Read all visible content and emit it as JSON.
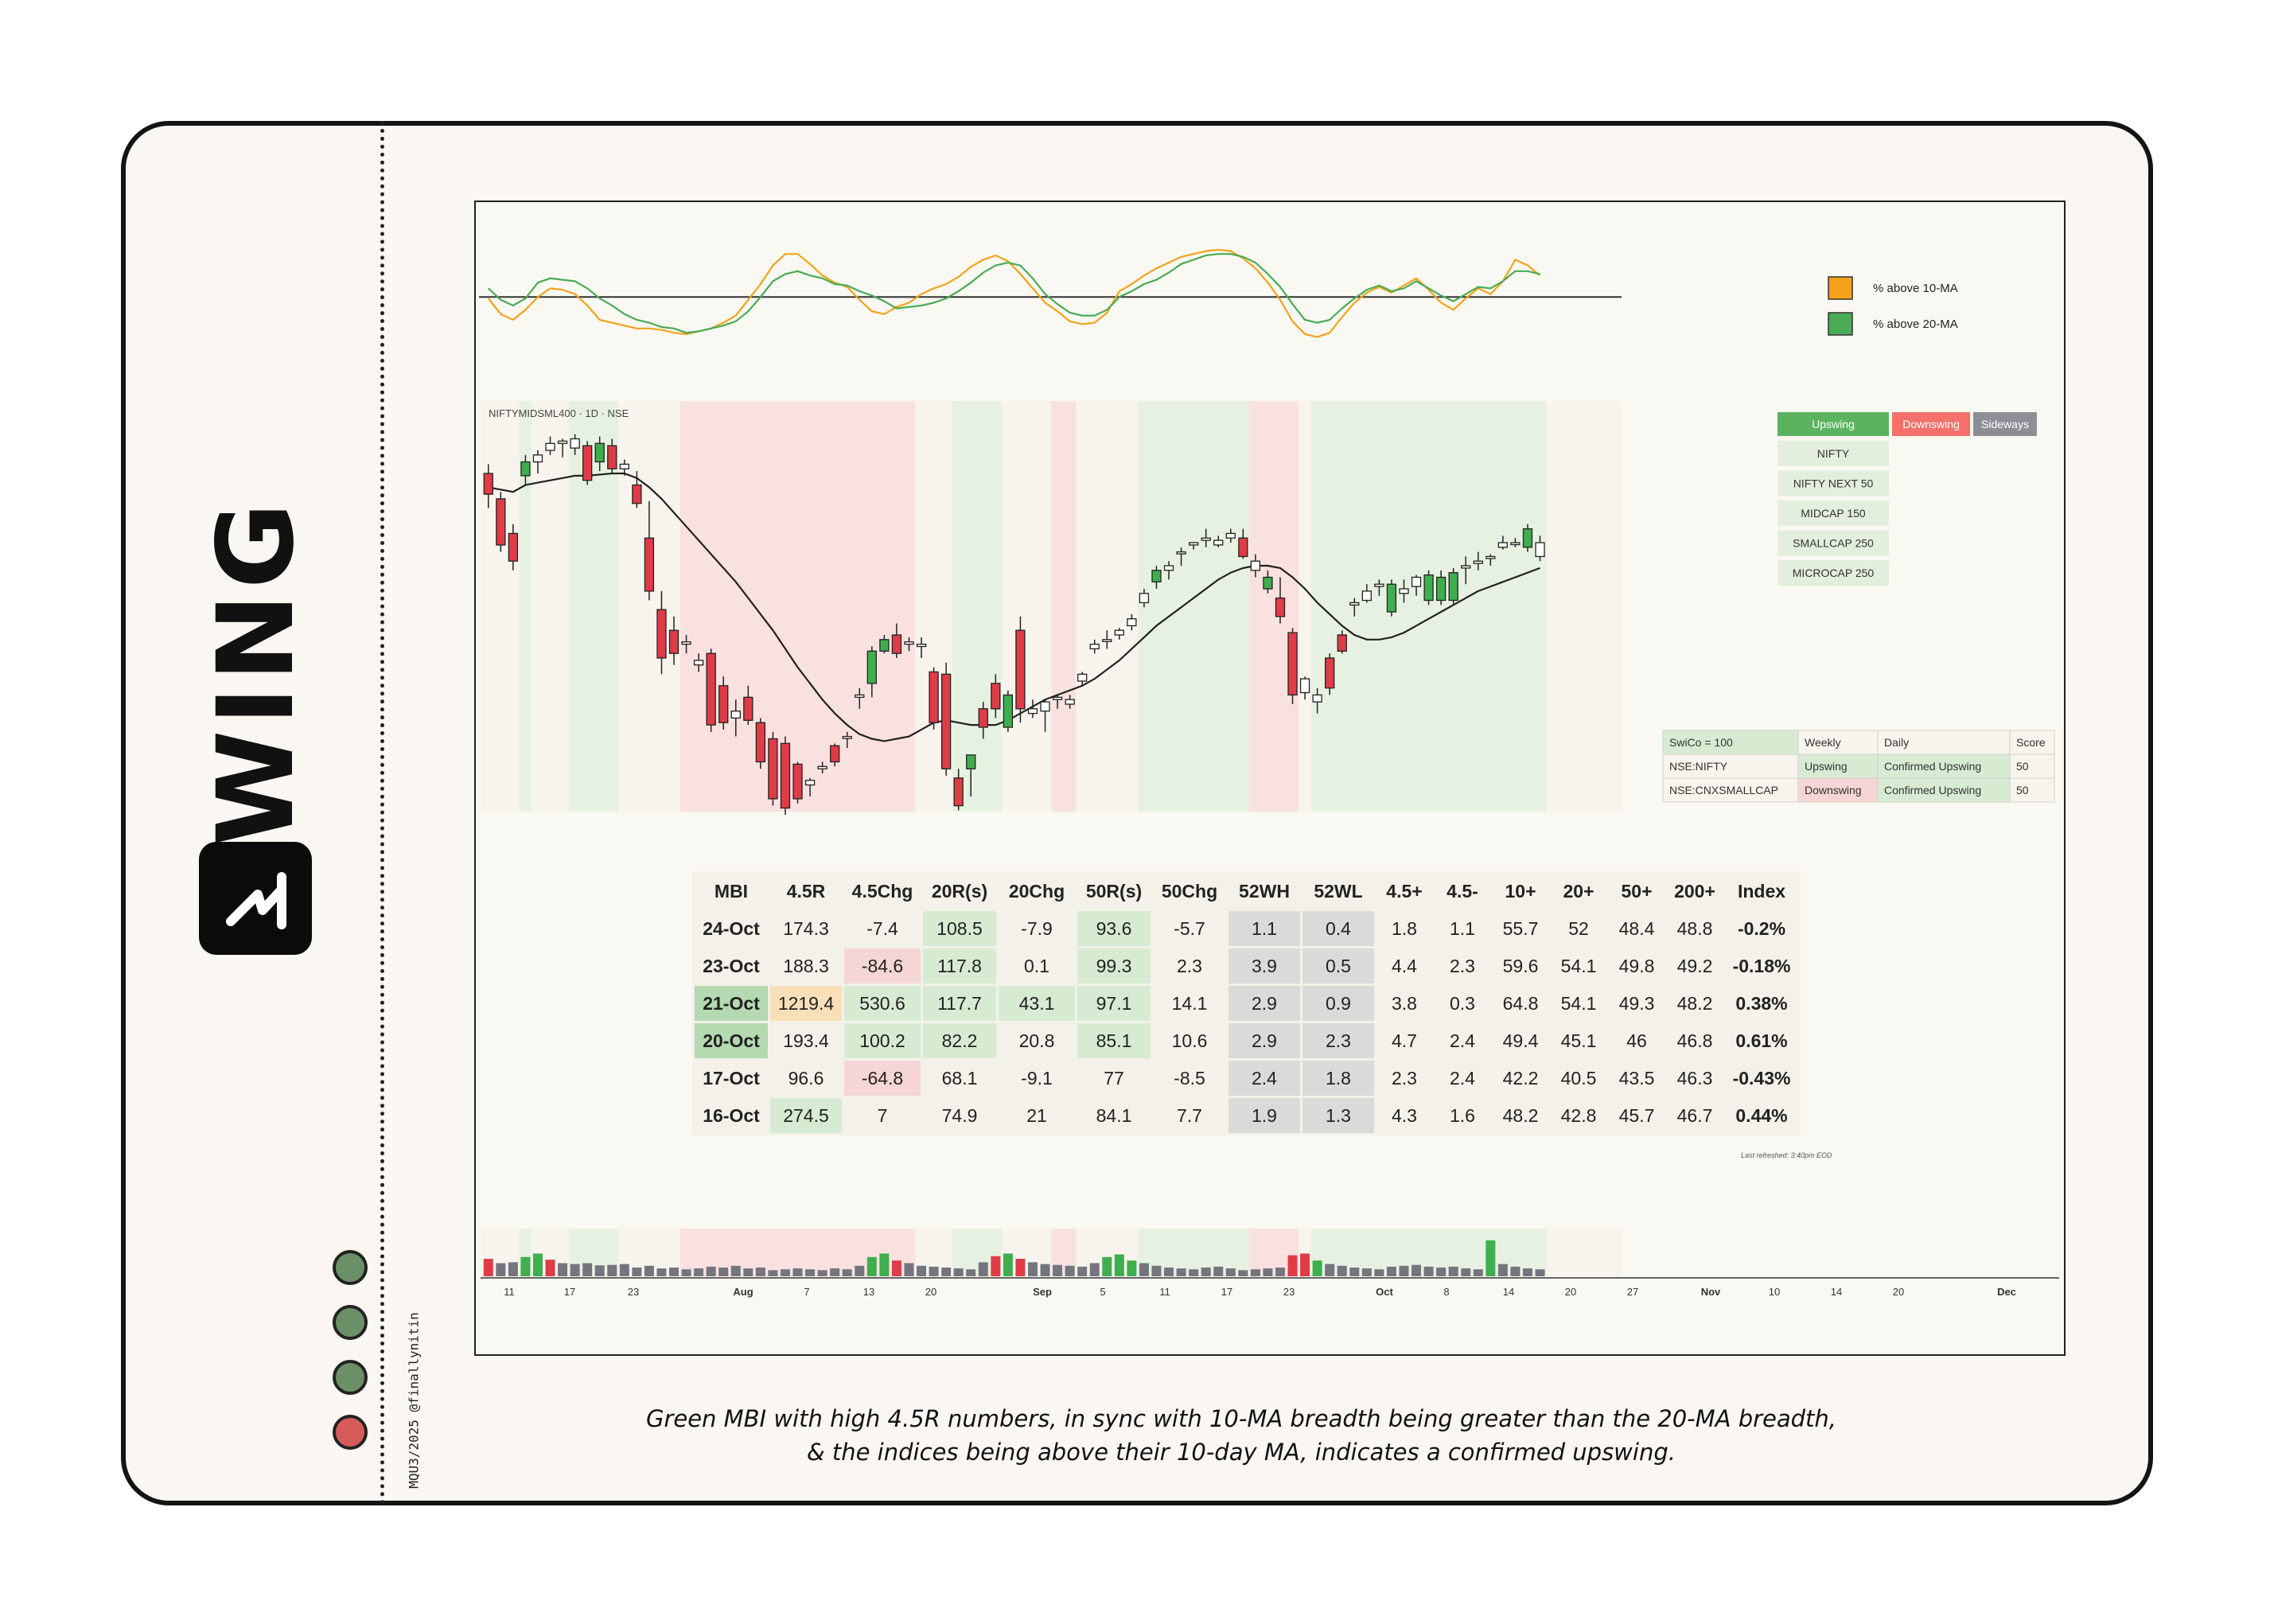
{
  "title": "SWING",
  "credit": "MQU3/2025 @finallynitin",
  "caption": [
    "Green MBI with high 4.5R numbers, in sync with 10-MA breadth being greater than the 20-MA breadth,",
    "& the indices being above their 10-day MA, indicates a confirmed upswing."
  ],
  "status_dots": [
    "green",
    "green",
    "green",
    "red"
  ],
  "colors": {
    "green": "#6b8f67",
    "red": "#d75c59",
    "up": "#3fae4f",
    "down": "#e03c47",
    "orange": "#f2a31a"
  },
  "chart_data": [
    {
      "type": "line",
      "legend": [
        "% above 10-MA",
        "% above 20-MA"
      ],
      "legend_position": "top-right",
      "series": [
        {
          "name": "% above 10-MA",
          "color": "#f2a31a",
          "values": [
            55,
            44,
            40,
            47,
            56,
            62,
            61,
            58,
            50,
            40,
            38,
            36,
            34,
            34,
            33,
            31,
            30,
            32,
            34,
            38,
            43,
            54,
            65,
            78,
            86,
            86,
            79,
            71,
            66,
            63,
            54,
            46,
            44,
            49,
            52,
            58,
            62,
            65,
            70,
            77,
            82,
            85,
            81,
            72,
            62,
            52,
            46,
            39,
            37,
            38,
            45,
            60,
            65,
            71,
            76,
            80,
            84,
            86,
            88,
            89,
            88,
            83,
            76,
            66,
            54,
            39,
            30,
            28,
            31,
            42,
            52,
            59,
            63,
            59,
            64,
            69,
            61,
            52,
            47,
            55,
            62,
            58,
            67,
            82,
            78,
            71
          ]
        },
        {
          "name": "% above 20-MA",
          "color": "#49ab55",
          "values": [
            62,
            54,
            50,
            55,
            66,
            69,
            68,
            67,
            62,
            55,
            50,
            44,
            40,
            38,
            35,
            34,
            31,
            32,
            34,
            36,
            39,
            46,
            56,
            67,
            72,
            74,
            71,
            69,
            65,
            64,
            60,
            57,
            53,
            48,
            49,
            50,
            52,
            55,
            60,
            66,
            73,
            78,
            80,
            78,
            69,
            58,
            51,
            45,
            43,
            43,
            47,
            56,
            60,
            65,
            68,
            73,
            79,
            82,
            85,
            86,
            86,
            84,
            80,
            72,
            63,
            51,
            40,
            38,
            40,
            48,
            55,
            61,
            64,
            60,
            62,
            67,
            62,
            57,
            53,
            58,
            63,
            62,
            67,
            74,
            74,
            72
          ]
        }
      ]
    },
    {
      "type": "candlestick",
      "chart_title": "NIFTYMIDSML400 · 1D · NSE",
      "candles": [
        [
          10100,
          10140,
          9950,
          10010
        ],
        [
          9990,
          10020,
          9760,
          9790
        ],
        [
          9840,
          9880,
          9680,
          9720
        ],
        [
          10090,
          10180,
          10050,
          10150
        ],
        [
          10150,
          10200,
          10100,
          10180
        ],
        [
          10230,
          10260,
          10180,
          10200
        ],
        [
          10240,
          10250,
          10170,
          10230
        ],
        [
          10250,
          10270,
          10180,
          10210
        ],
        [
          10220,
          10240,
          10050,
          10070
        ],
        [
          10150,
          10260,
          10110,
          10230
        ],
        [
          10220,
          10250,
          10100,
          10120
        ],
        [
          10120,
          10160,
          10090,
          10140
        ],
        [
          10050,
          10110,
          9950,
          9970
        ],
        [
          9820,
          9980,
          9550,
          9590
        ],
        [
          9510,
          9590,
          9230,
          9300
        ],
        [
          9420,
          9480,
          9270,
          9320
        ],
        [
          9360,
          9400,
          9320,
          9370
        ],
        [
          9290,
          9320,
          9240,
          9270
        ],
        [
          9320,
          9340,
          8980,
          9010
        ],
        [
          9180,
          9220,
          8990,
          9020
        ],
        [
          9040,
          9120,
          8960,
          9070
        ],
        [
          9130,
          9180,
          9010,
          9030
        ],
        [
          9020,
          9040,
          8820,
          8850
        ],
        [
          8950,
          8980,
          8660,
          8690
        ],
        [
          8930,
          8960,
          8620,
          8650
        ],
        [
          8840,
          8850,
          8670,
          8690
        ],
        [
          8750,
          8780,
          8700,
          8770
        ],
        [
          8820,
          8850,
          8800,
          8830
        ],
        [
          8920,
          8930,
          8830,
          8850
        ],
        [
          8960,
          8980,
          8910,
          8960
        ],
        [
          9130,
          9170,
          9080,
          9140
        ],
        [
          9190,
          9350,
          9130,
          9330
        ],
        [
          9330,
          9400,
          9320,
          9380
        ],
        [
          9400,
          9450,
          9300,
          9320
        ],
        [
          9370,
          9390,
          9330,
          9360
        ],
        [
          9350,
          9390,
          9300,
          9360
        ],
        [
          9240,
          9260,
          8990,
          9020
        ],
        [
          9230,
          9280,
          8790,
          8820
        ],
        [
          8780,
          8820,
          8640,
          8660
        ],
        [
          8820,
          8870,
          8700,
          8880
        ],
        [
          9080,
          9110,
          8950,
          9000
        ],
        [
          9190,
          9230,
          9040,
          9080
        ],
        [
          9000,
          9160,
          8980,
          9140
        ],
        [
          9420,
          9480,
          9020,
          9080
        ],
        [
          9060,
          9120,
          9040,
          9080
        ],
        [
          9070,
          9120,
          8980,
          9110
        ],
        [
          9120,
          9140,
          9080,
          9130
        ],
        [
          9100,
          9140,
          9080,
          9120
        ],
        [
          9200,
          9240,
          9180,
          9230
        ],
        [
          9360,
          9380,
          9320,
          9340
        ],
        [
          9380,
          9420,
          9340,
          9380
        ],
        [
          9400,
          9430,
          9380,
          9420
        ],
        [
          9440,
          9490,
          9420,
          9470
        ],
        [
          9540,
          9600,
          9520,
          9580
        ],
        [
          9630,
          9700,
          9600,
          9680
        ],
        [
          9680,
          9720,
          9640,
          9700
        ],
        [
          9760,
          9780,
          9700,
          9760
        ],
        [
          9790,
          9800,
          9770,
          9800
        ],
        [
          9820,
          9860,
          9780,
          9810
        ],
        [
          9790,
          9830,
          9780,
          9810
        ],
        [
          9840,
          9860,
          9800,
          9820
        ],
        [
          9820,
          9860,
          9730,
          9740
        ],
        [
          9680,
          9750,
          9650,
          9720
        ],
        [
          9600,
          9680,
          9580,
          9650
        ],
        [
          9560,
          9650,
          9450,
          9480
        ],
        [
          9410,
          9430,
          9100,
          9140
        ],
        [
          9210,
          9220,
          9120,
          9150
        ],
        [
          9110,
          9170,
          9060,
          9140
        ],
        [
          9300,
          9320,
          9140,
          9170
        ],
        [
          9400,
          9420,
          9320,
          9330
        ],
        [
          9530,
          9560,
          9480,
          9540
        ],
        [
          9550,
          9620,
          9540,
          9590
        ],
        [
          9610,
          9640,
          9570,
          9620
        ],
        [
          9500,
          9640,
          9480,
          9620
        ],
        [
          9580,
          9640,
          9540,
          9600
        ],
        [
          9610,
          9660,
          9570,
          9650
        ],
        [
          9550,
          9680,
          9530,
          9660
        ],
        [
          9550,
          9680,
          9530,
          9650
        ],
        [
          9550,
          9690,
          9530,
          9670
        ],
        [
          9700,
          9740,
          9620,
          9690
        ],
        [
          9710,
          9760,
          9680,
          9720
        ],
        [
          9740,
          9750,
          9700,
          9740
        ],
        [
          9780,
          9830,
          9770,
          9800
        ],
        [
          9800,
          9820,
          9780,
          9800
        ],
        [
          9780,
          9880,
          9760,
          9860
        ],
        [
          9800,
          9830,
          9720,
          9740
        ]
      ],
      "ma": [
        10040,
        10030,
        10020,
        10050,
        10060,
        10070,
        10080,
        10090,
        10090,
        10095,
        10100,
        10100,
        10080,
        10040,
        9990,
        9930,
        9870,
        9810,
        9750,
        9690,
        9630,
        9560,
        9490,
        9420,
        9340,
        9260,
        9190,
        9120,
        9060,
        9010,
        8970,
        8950,
        8940,
        8950,
        8960,
        8990,
        9020,
        9030,
        9020,
        9010,
        9010,
        9010,
        9030,
        9060,
        9090,
        9120,
        9140,
        9160,
        9180,
        9210,
        9250,
        9290,
        9340,
        9390,
        9440,
        9480,
        9520,
        9560,
        9600,
        9640,
        9670,
        9690,
        9700,
        9700,
        9690,
        9650,
        9600,
        9540,
        9490,
        9440,
        9400,
        9380,
        9380,
        9390,
        9410,
        9440,
        9470,
        9500,
        9530,
        9560,
        9590,
        9610,
        9630,
        9650,
        9670,
        9690
      ],
      "regime_bands": [
        {
          "from": 3,
          "to": 4,
          "regime": "upswing"
        },
        {
          "from": 7,
          "to": 11,
          "regime": "upswing"
        },
        {
          "from": 16,
          "to": 35,
          "regime": "downswing"
        },
        {
          "from": 38,
          "to": 42,
          "regime": "upswing"
        },
        {
          "from": 46,
          "to": 48,
          "regime": "downswing"
        },
        {
          "from": 53,
          "to": 62,
          "regime": "upswing"
        },
        {
          "from": 62,
          "to": 66,
          "regime": "downswing"
        },
        {
          "from": 67,
          "to": 86,
          "regime": "upswing"
        }
      ],
      "regime_legend": [
        "Upswing",
        "Downswing",
        "Sideways"
      ],
      "indices": [
        "NIFTY",
        "NIFTY NEXT 50",
        "MIDCAP 150",
        "SMALLCAP 250",
        "MICROCAP 250"
      ],
      "swico_table": {
        "headers": [
          "SwiCo = 100",
          "Weekly",
          "Daily",
          "Score"
        ],
        "rows": [
          [
            "NSE:NIFTY",
            "Upswing",
            "Confirmed Upswing",
            "50"
          ],
          [
            "NSE:CNXSMALLCAP",
            "Downswing",
            "Confirmed Upswing",
            "50"
          ]
        ]
      },
      "volume": [
        40,
        30,
        32,
        44,
        52,
        38,
        30,
        28,
        30,
        25,
        26,
        28,
        20,
        24,
        18,
        20,
        16,
        18,
        22,
        20,
        24,
        18,
        20,
        14,
        16,
        18,
        16,
        14,
        18,
        16,
        24,
        44,
        52,
        36,
        30,
        24,
        22,
        20,
        18,
        16,
        32,
        46,
        52,
        40,
        32,
        28,
        26,
        24,
        22,
        30,
        44,
        50,
        36,
        30,
        24,
        20,
        18,
        16,
        20,
        22,
        18,
        14,
        16,
        18,
        20,
        48,
        52,
        36,
        28,
        24,
        20,
        18,
        16,
        22,
        24,
        26,
        22,
        20,
        22,
        18,
        16,
        82,
        28,
        22,
        18,
        16
      ],
      "x_axis_labels": [
        "11",
        "17",
        "23",
        "Aug",
        "7",
        "13",
        "20",
        "Sep",
        "5",
        "11",
        "17",
        "23",
        "Oct",
        "8",
        "14",
        "20",
        "27",
        "Nov",
        "10",
        "14",
        "20",
        "Dec"
      ]
    },
    {
      "type": "table",
      "columns": [
        "MBI",
        "4.5R",
        "4.5Chg",
        "20R(s)",
        "20Chg",
        "50R(s)",
        "50Chg",
        "52WH",
        "52WL",
        "4.5+",
        "4.5-",
        "10+",
        "20+",
        "50+",
        "200+",
        "Index"
      ],
      "rows": [
        [
          "24-Oct",
          "174.3",
          "-7.4",
          "108.5",
          "-7.9",
          "93.6",
          "-5.7",
          "1.1",
          "0.4",
          "1.8",
          "1.1",
          "55.7",
          "52",
          "48.4",
          "48.8",
          "-0.2%"
        ],
        [
          "23-Oct",
          "188.3",
          "-84.6",
          "117.8",
          "0.1",
          "99.3",
          "2.3",
          "3.9",
          "0.5",
          "4.4",
          "2.3",
          "59.6",
          "54.1",
          "49.8",
          "49.2",
          "-0.18%"
        ],
        [
          "21-Oct",
          "1219.4",
          "530.6",
          "117.7",
          "43.1",
          "97.1",
          "14.1",
          "2.9",
          "0.9",
          "3.8",
          "0.3",
          "64.8",
          "54.1",
          "49.3",
          "48.2",
          "0.38%"
        ],
        [
          "20-Oct",
          "193.4",
          "100.2",
          "82.2",
          "20.8",
          "85.1",
          "10.6",
          "2.9",
          "2.3",
          "4.7",
          "2.4",
          "49.4",
          "45.1",
          "46",
          "46.8",
          "0.61%"
        ],
        [
          "17-Oct",
          "96.6",
          "-64.8",
          "68.1",
          "-9.1",
          "77",
          "-8.5",
          "2.4",
          "1.8",
          "2.3",
          "2.4",
          "42.2",
          "40.5",
          "43.5",
          "46.3",
          "-0.43%"
        ],
        [
          "16-Oct",
          "274.5",
          "7",
          "74.9",
          "21",
          "84.1",
          "7.7",
          "1.9",
          "1.3",
          "4.3",
          "1.6",
          "48.2",
          "42.8",
          "45.7",
          "46.7",
          "0.44%"
        ]
      ],
      "cell_colors": [
        [
          "",
          "",
          "",
          "g",
          "",
          "g",
          "",
          "x",
          "x",
          "",
          "",
          "",
          "",
          "",
          "",
          ""
        ],
        [
          "",
          "",
          "r",
          "g",
          "",
          "g",
          "",
          "x",
          "x",
          "",
          "",
          "",
          "",
          "",
          "",
          ""
        ],
        [
          "G",
          "o",
          "g",
          "g",
          "g",
          "g",
          "",
          "x",
          "x",
          "",
          "",
          "",
          "",
          "",
          "",
          ""
        ],
        [
          "G",
          "",
          "g",
          "g",
          "",
          "g",
          "",
          "x",
          "x",
          "",
          "",
          "",
          "",
          "",
          "",
          ""
        ],
        [
          "",
          "",
          "r",
          "",
          "",
          "",
          "",
          "x",
          "x",
          "",
          "",
          "",
          "",
          "",
          "",
          ""
        ],
        [
          "",
          "g",
          "",
          "",
          "",
          "",
          "",
          "x",
          "x",
          "",
          "",
          "",
          "",
          "",
          "",
          ""
        ]
      ],
      "footnote": "Last refreshed: 3:40pm EOD"
    }
  ]
}
